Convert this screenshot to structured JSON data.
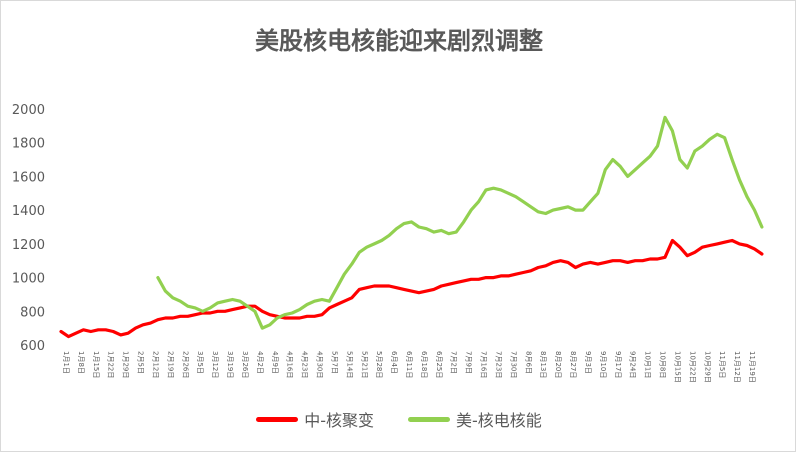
{
  "chart_data": {
    "type": "line",
    "title": "美股核电核能迎来剧烈调整",
    "xlabel": "",
    "ylabel": "",
    "ylim": [
      600,
      2000
    ],
    "yticks": [
      600,
      800,
      1000,
      1200,
      1400,
      1600,
      1800,
      2000
    ],
    "grid": false,
    "legend_position": "bottom",
    "x_tick_labels": [
      "1月1日",
      "1月8日",
      "1月15日",
      "1月22日",
      "1月29日",
      "2月5日",
      "2月12日",
      "2月19日",
      "2月26日",
      "3月5日",
      "3月12日",
      "3月19日",
      "3月26日",
      "4月2日",
      "4月9日",
      "4月16日",
      "4月23日",
      "4月30日",
      "5月7日",
      "5月14日",
      "5月21日",
      "5月28日",
      "6月4日",
      "6月11日",
      "6月18日",
      "6月25日",
      "7月2日",
      "7月9日",
      "7月16日",
      "7月23日",
      "7月30日",
      "8月6日",
      "8月13日",
      "8月20日",
      "8月27日",
      "9月3日",
      "9月10日",
      "9月17日",
      "9月24日",
      "10月1日",
      "10月8日",
      "10月15日",
      "10月22日",
      "10月29日",
      "11月5日",
      "11月12日",
      "11月19日"
    ],
    "series": [
      {
        "name": "中-核聚变",
        "color": "#ff0000",
        "points": [
          [
            0,
            680
          ],
          [
            0.5,
            650
          ],
          [
            1,
            670
          ],
          [
            1.5,
            690
          ],
          [
            2,
            680
          ],
          [
            2.5,
            690
          ],
          [
            3,
            690
          ],
          [
            3.5,
            680
          ],
          [
            4,
            660
          ],
          [
            4.5,
            670
          ],
          [
            5,
            700
          ],
          [
            5.5,
            720
          ],
          [
            6,
            730
          ],
          [
            6.5,
            750
          ],
          [
            7,
            760
          ],
          [
            7.5,
            760
          ],
          [
            8,
            770
          ],
          [
            8.5,
            770
          ],
          [
            9,
            780
          ],
          [
            9.5,
            790
          ],
          [
            10,
            790
          ],
          [
            10.5,
            800
          ],
          [
            11,
            800
          ],
          [
            11.5,
            810
          ],
          [
            12,
            820
          ],
          [
            12.5,
            830
          ],
          [
            13,
            830
          ],
          [
            13.5,
            800
          ],
          [
            14,
            780
          ],
          [
            14.5,
            770
          ],
          [
            15,
            760
          ],
          [
            15.5,
            760
          ],
          [
            16,
            760
          ],
          [
            16.5,
            770
          ],
          [
            17,
            770
          ],
          [
            17.5,
            780
          ],
          [
            18,
            820
          ],
          [
            18.5,
            840
          ],
          [
            19,
            860
          ],
          [
            19.5,
            880
          ],
          [
            20,
            930
          ],
          [
            20.5,
            940
          ],
          [
            21,
            950
          ],
          [
            21.5,
            950
          ],
          [
            22,
            950
          ],
          [
            22.5,
            940
          ],
          [
            23,
            930
          ],
          [
            23.5,
            920
          ],
          [
            24,
            910
          ],
          [
            24.5,
            920
          ],
          [
            25,
            930
          ],
          [
            25.5,
            950
          ],
          [
            26,
            960
          ],
          [
            26.5,
            970
          ],
          [
            27,
            980
          ],
          [
            27.5,
            990
          ],
          [
            28,
            990
          ],
          [
            28.5,
            1000
          ],
          [
            29,
            1000
          ],
          [
            29.5,
            1010
          ],
          [
            30,
            1010
          ],
          [
            30.5,
            1020
          ],
          [
            31,
            1030
          ],
          [
            31.5,
            1040
          ],
          [
            32,
            1060
          ],
          [
            32.5,
            1070
          ],
          [
            33,
            1090
          ],
          [
            33.5,
            1100
          ],
          [
            34,
            1090
          ],
          [
            34.5,
            1060
          ],
          [
            35,
            1080
          ],
          [
            35.5,
            1090
          ],
          [
            36,
            1080
          ],
          [
            36.5,
            1090
          ],
          [
            37,
            1100
          ],
          [
            37.5,
            1100
          ],
          [
            38,
            1090
          ],
          [
            38.5,
            1100
          ],
          [
            39,
            1100
          ],
          [
            39.5,
            1110
          ],
          [
            40,
            1110
          ],
          [
            40.5,
            1120
          ],
          [
            41,
            1220
          ],
          [
            41.5,
            1180
          ],
          [
            42,
            1130
          ],
          [
            42.5,
            1150
          ],
          [
            43,
            1180
          ],
          [
            43.5,
            1190
          ],
          [
            44,
            1200
          ],
          [
            44.5,
            1210
          ],
          [
            45,
            1220
          ],
          [
            45.5,
            1200
          ],
          [
            46,
            1190
          ],
          [
            46.5,
            1170
          ],
          [
            47,
            1140
          ]
        ]
      },
      {
        "name": "美-核电核能",
        "color": "#92d050",
        "points": [
          [
            6.5,
            1000
          ],
          [
            7,
            920
          ],
          [
            7.5,
            880
          ],
          [
            8,
            860
          ],
          [
            8.5,
            830
          ],
          [
            9,
            820
          ],
          [
            9.5,
            800
          ],
          [
            10,
            820
          ],
          [
            10.5,
            850
          ],
          [
            11,
            860
          ],
          [
            11.5,
            870
          ],
          [
            12,
            860
          ],
          [
            12.5,
            830
          ],
          [
            13,
            800
          ],
          [
            13.5,
            700
          ],
          [
            14,
            720
          ],
          [
            14.5,
            760
          ],
          [
            15,
            780
          ],
          [
            15.5,
            790
          ],
          [
            16,
            810
          ],
          [
            16.5,
            840
          ],
          [
            17,
            860
          ],
          [
            17.5,
            870
          ],
          [
            18,
            860
          ],
          [
            18.5,
            940
          ],
          [
            19,
            1020
          ],
          [
            19.5,
            1080
          ],
          [
            20,
            1150
          ],
          [
            20.5,
            1180
          ],
          [
            21,
            1200
          ],
          [
            21.5,
            1220
          ],
          [
            22,
            1250
          ],
          [
            22.5,
            1290
          ],
          [
            23,
            1320
          ],
          [
            23.5,
            1330
          ],
          [
            24,
            1300
          ],
          [
            24.5,
            1290
          ],
          [
            25,
            1270
          ],
          [
            25.5,
            1280
          ],
          [
            26,
            1260
          ],
          [
            26.5,
            1270
          ],
          [
            27,
            1330
          ],
          [
            27.5,
            1400
          ],
          [
            28,
            1450
          ],
          [
            28.5,
            1520
          ],
          [
            29,
            1530
          ],
          [
            29.5,
            1520
          ],
          [
            30,
            1500
          ],
          [
            30.5,
            1480
          ],
          [
            31,
            1450
          ],
          [
            31.5,
            1420
          ],
          [
            32,
            1390
          ],
          [
            32.5,
            1380
          ],
          [
            33,
            1400
          ],
          [
            33.5,
            1410
          ],
          [
            34,
            1420
          ],
          [
            34.5,
            1400
          ],
          [
            35,
            1400
          ],
          [
            35.5,
            1450
          ],
          [
            36,
            1500
          ],
          [
            36.5,
            1640
          ],
          [
            37,
            1700
          ],
          [
            37.5,
            1660
          ],
          [
            38,
            1600
          ],
          [
            38.5,
            1640
          ],
          [
            39,
            1680
          ],
          [
            39.5,
            1720
          ],
          [
            40,
            1780
          ],
          [
            40.5,
            1950
          ],
          [
            41,
            1870
          ],
          [
            41.5,
            1700
          ],
          [
            42,
            1650
          ],
          [
            42.5,
            1750
          ],
          [
            43,
            1780
          ],
          [
            43.5,
            1820
          ],
          [
            44,
            1850
          ],
          [
            44.5,
            1830
          ],
          [
            45,
            1700
          ],
          [
            45.5,
            1580
          ],
          [
            46,
            1480
          ],
          [
            46.5,
            1400
          ],
          [
            47,
            1300
          ]
        ]
      }
    ]
  }
}
